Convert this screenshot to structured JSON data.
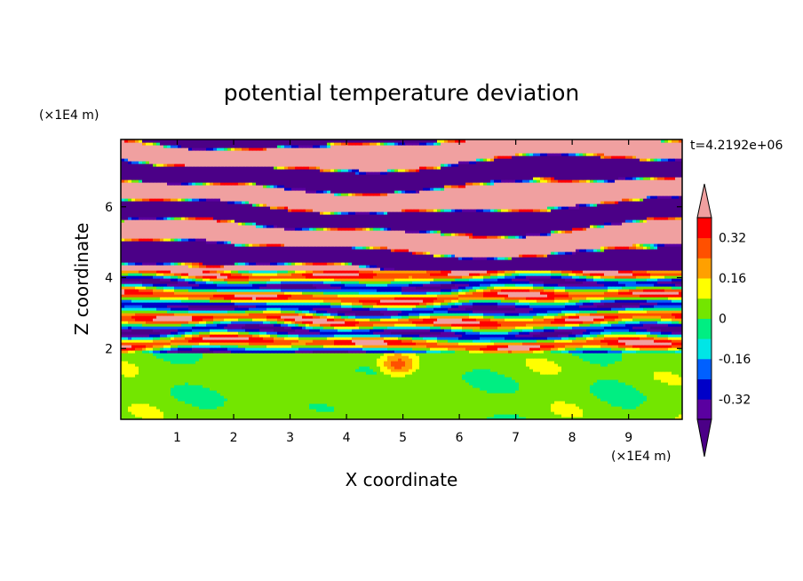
{
  "chart_data": {
    "type": "heatmap",
    "title": "potential temperature deviation",
    "xlabel": "X coordinate",
    "ylabel": "Z coordinate",
    "x_unit": "(×1E4 m)",
    "z_unit": "(×1E4 m)",
    "time_label": "t=4.2192e+06",
    "xlim": [
      0,
      9.95
    ],
    "zlim": [
      0,
      7.9
    ],
    "x_ticks": [
      1,
      2,
      3,
      4,
      5,
      6,
      7,
      8,
      9
    ],
    "z_ticks": [
      2,
      4,
      6
    ],
    "colorbar": {
      "levels": [
        -0.4,
        -0.32,
        -0.24,
        -0.16,
        -0.08,
        0,
        0.08,
        0.16,
        0.24,
        0.32,
        0.4
      ],
      "colors": [
        "#4b0087",
        "#5a00a0",
        "#0000c8",
        "#0060ff",
        "#00e6e6",
        "#00ee82",
        "#73e600",
        "#ffff00",
        "#ffa000",
        "#ff5000",
        "#ff0000",
        "#f0a0a0"
      ],
      "tick_labels": [
        "0.32",
        "0.16",
        "0",
        "-0.16",
        "-0.32"
      ],
      "tick_values": [
        0.32,
        0.16,
        0,
        -0.16,
        -0.32
      ],
      "extend": "both"
    },
    "description_layers": [
      {
        "z_range": [
          0,
          1.9
        ],
        "pattern": "near-zero, green tones"
      },
      {
        "z_range": [
          1.9,
          4.2
        ],
        "pattern": "alternating multicolor bands"
      },
      {
        "z_range": [
          4.2,
          7.9
        ],
        "pattern": "alternating purple and pink bands"
      }
    ]
  }
}
